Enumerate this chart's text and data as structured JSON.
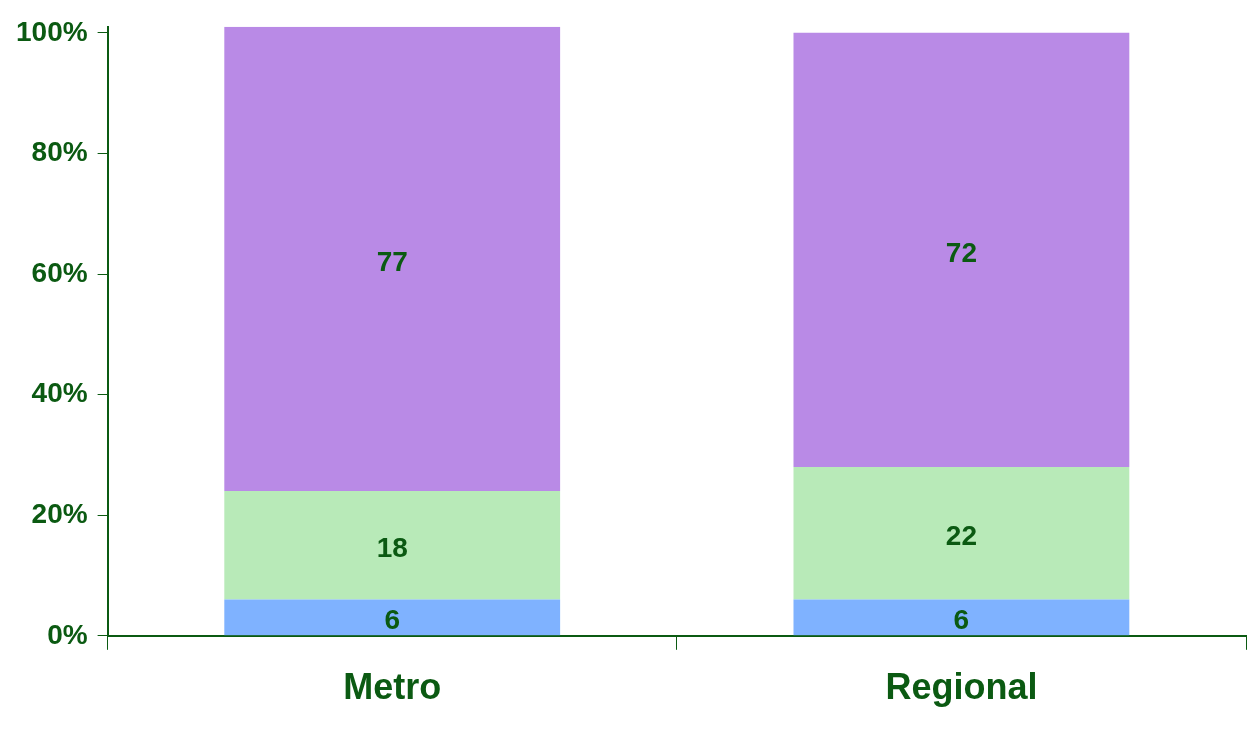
{
  "chart_data": {
    "type": "bar",
    "stacked": true,
    "categories": [
      "Metro",
      "Regional"
    ],
    "series": [
      {
        "color": "#7fb2ff",
        "values": [
          6,
          6
        ]
      },
      {
        "color": "#b8eab8",
        "values": [
          18,
          22
        ]
      },
      {
        "color": "#b98ae6",
        "values": [
          77,
          72
        ]
      }
    ],
    "ylim": [
      0,
      101
    ],
    "yticks": [
      {
        "value": 0,
        "label": "0%"
      },
      {
        "value": 20,
        "label": "20%"
      },
      {
        "value": 40,
        "label": "40%"
      },
      {
        "value": 60,
        "label": "60%"
      },
      {
        "value": 80,
        "label": "80%"
      },
      {
        "value": 100,
        "label": "100%"
      }
    ],
    "data_labels": true,
    "grid": false,
    "legend": false
  }
}
